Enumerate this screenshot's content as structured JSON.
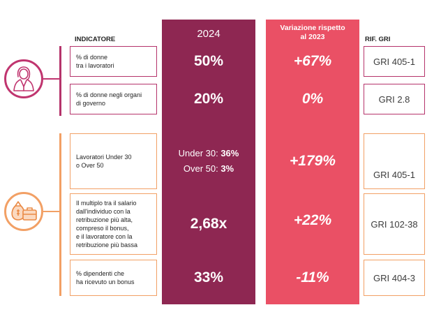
{
  "headers": {
    "indicatore": "INDICATORE",
    "year": "2024",
    "variation_line1": "Variazione rispetto",
    "variation_line2": "al 2023",
    "rif_gri": "RIF. GRI"
  },
  "rows": [
    {
      "indicator_l1": "% di donne",
      "indicator_l2": "tra i lavoratori",
      "value": "50%",
      "variation": "+67%",
      "gri": "GRI 405-1"
    },
    {
      "indicator_l1": "% di donne negli organi",
      "indicator_l2": "di governo",
      "value": "20%",
      "variation": "0%",
      "gri": "GRI 2.8"
    },
    {
      "indicator_l1": "Lavoratori Under 30",
      "indicator_l2": "o Over 50",
      "value_under_label": "Under 30: ",
      "value_under": "36%",
      "value_over_label": "Over 50: ",
      "value_over": "3%",
      "variation": "+179%",
      "gri": "GRI 405-1"
    },
    {
      "indicator_l1": "Il multiplo tra il salario",
      "indicator_l2": "dall'individuo con la",
      "indicator_l3": "retribuzione più alta,",
      "indicator_l4": "compreso il bonus,",
      "indicator_l5": "e  il lavoratore con la",
      "indicator_l6": "retribuzione più bassa",
      "value": "2,68x",
      "variation": "+22%",
      "gri": "GRI 102-38"
    },
    {
      "indicator_l1": "% dipendenti che",
      "indicator_l2": "ha ricevuto un bonus",
      "value": "33%",
      "variation": "-11%",
      "gri": "GRI 404-3"
    }
  ],
  "colors": {
    "band_2024": "#8e2752",
    "band_variation": "#ea5065",
    "group1": "#b5336b",
    "group2": "#f2a065"
  },
  "icons": {
    "group1": "businesswoman-icon",
    "group2": "money-bag-briefcase-icon"
  }
}
